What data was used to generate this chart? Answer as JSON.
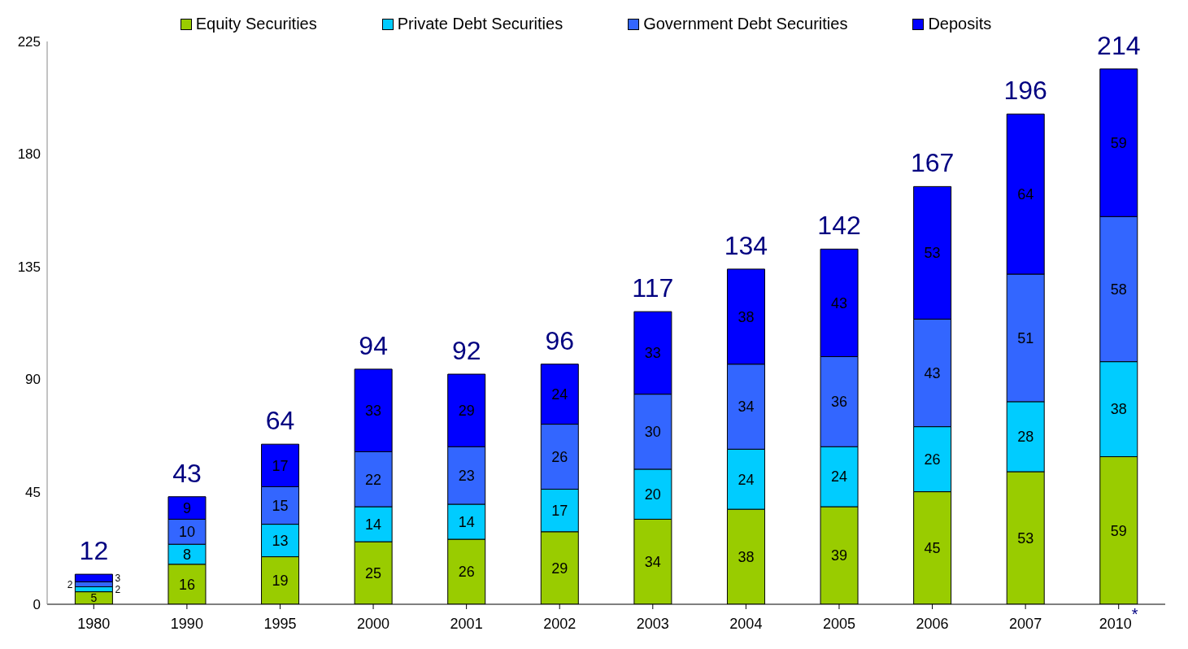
{
  "chart_data": {
    "type": "bar",
    "stacked": true,
    "categories": [
      "1980",
      "1990",
      "1995",
      "2000",
      "2001",
      "2002",
      "2003",
      "2004",
      "2005",
      "2006",
      "2007",
      "2010$^{*}$"
    ],
    "series": [
      {
        "name": "Equity Securities",
        "color": "#99cc00",
        "values": [
          5,
          16,
          19,
          25,
          26,
          29,
          34,
          38,
          39,
          45,
          53,
          59
        ]
      },
      {
        "name": "Private Debt Securities",
        "color": "#00ccff",
        "values": [
          2,
          8,
          13,
          14,
          14,
          17,
          20,
          24,
          24,
          26,
          28,
          38
        ]
      },
      {
        "name": "Government Debt Securities",
        "color": "#3366ff",
        "values": [
          2,
          10,
          15,
          22,
          23,
          26,
          30,
          34,
          36,
          43,
          51,
          58
        ]
      },
      {
        "name": "Deposits",
        "color": "#0000ff",
        "values": [
          3,
          9,
          17,
          33,
          29,
          24,
          33,
          38,
          43,
          53,
          64,
          59
        ]
      }
    ],
    "totals": [
      "12",
      "43",
      "64",
      "94",
      "92",
      "96",
      "117",
      "134",
      "142",
      "167",
      "196",
      "214"
    ],
    "data_labels": true,
    "ylim": [
      0,
      225
    ],
    "yticks": [
      0,
      45,
      90,
      135,
      180,
      225
    ],
    "grid": false,
    "legend": "top"
  }
}
